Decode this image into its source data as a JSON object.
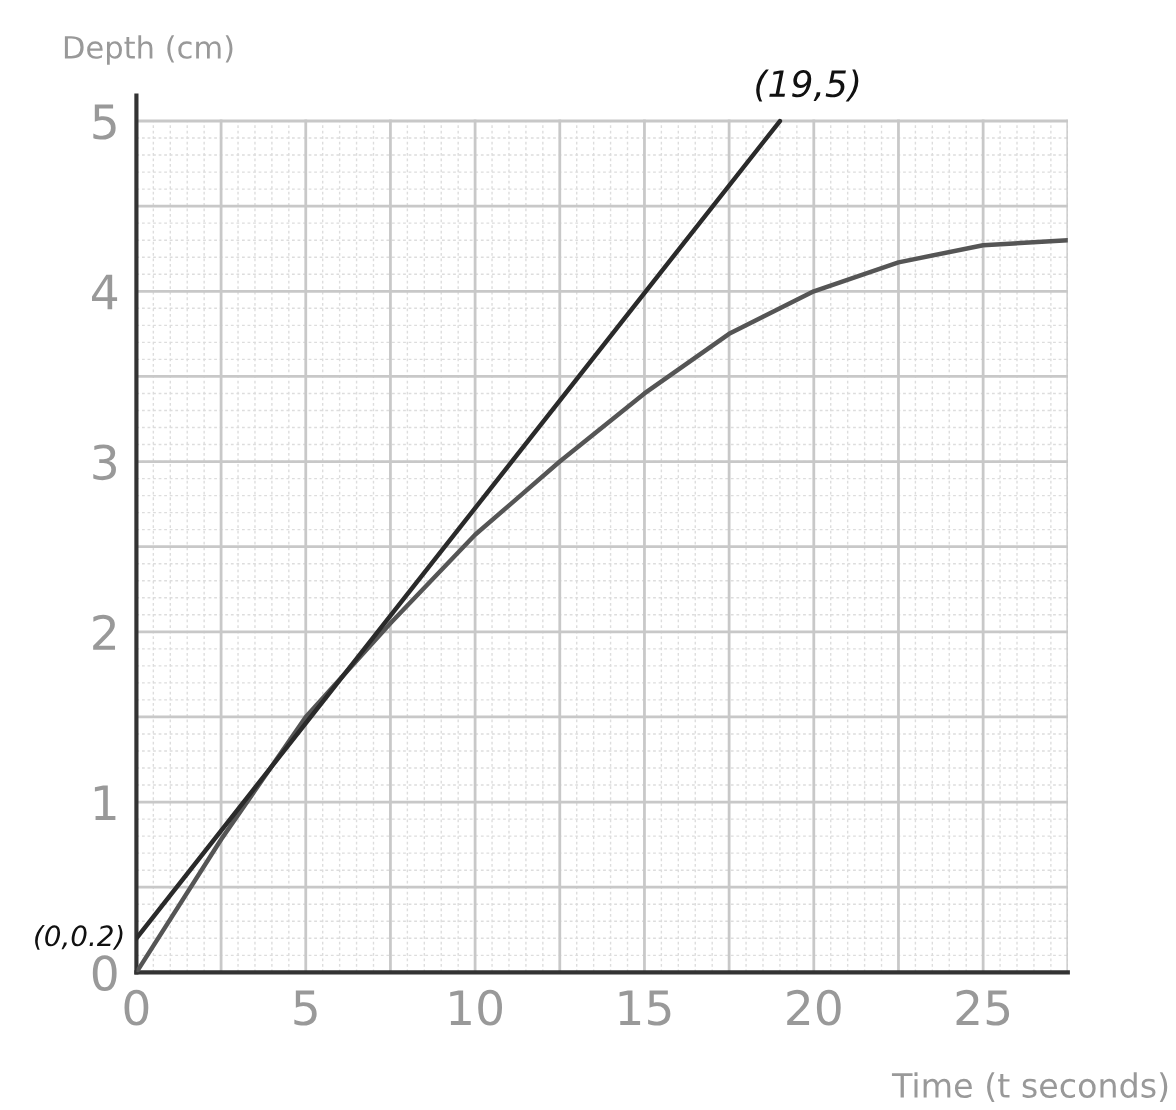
{
  "chart_data": {
    "type": "line",
    "xlabel": "Time (t seconds)",
    "ylabel": "Depth (cm)",
    "series": [
      {
        "color": "#555555",
        "x": [
          0,
          2.5,
          5,
          7.5,
          10,
          12.5,
          15,
          17.5,
          20,
          22.5,
          25,
          27.5
        ],
        "values": [
          0,
          0.78,
          1.5,
          2.05,
          2.57,
          3.0,
          3.4,
          3.75,
          4.0,
          4.17,
          4.27,
          4.3
        ]
      },
      {
        "color": "#2a2a2a",
        "x": [
          0,
          19
        ],
        "values": [
          0.2,
          5
        ]
      }
    ],
    "xlim": [
      0,
      27.5
    ],
    "ylim": [
      0,
      5.15
    ],
    "xticks": [
      0,
      5,
      10,
      15,
      20,
      25
    ],
    "yticks": [
      0,
      1,
      2,
      3,
      4,
      5
    ],
    "grid": true,
    "marker": "none",
    "line_style": "solid",
    "annotations": [
      {
        "text": "(19,5)",
        "x": 19,
        "y": 5
      },
      {
        "text": "(0,0.2)",
        "x": 0,
        "y": 0.2
      }
    ]
  }
}
